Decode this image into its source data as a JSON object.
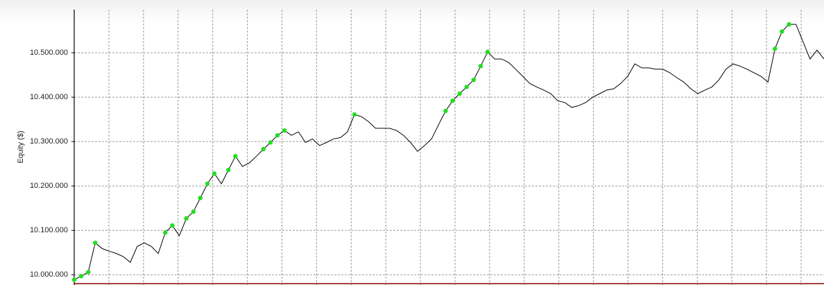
{
  "chart_data": {
    "type": "line",
    "y_label": "Equity ($)",
    "ylim": [
      9977000,
      10597000
    ],
    "yticks": [
      {
        "value": 10000000,
        "label": "10.000.000"
      },
      {
        "value": 10100000,
        "label": "10.100.000"
      },
      {
        "value": 10200000,
        "label": "10.200.000"
      },
      {
        "value": 10300000,
        "label": "10.300.000"
      },
      {
        "value": 10400000,
        "label": "10.400.000"
      },
      {
        "value": 10500000,
        "label": "10.500.000"
      }
    ],
    "grid": true,
    "series": [
      {
        "color": "#000000",
        "values": [
          9989000,
          9997000,
          10006000,
          10072000,
          10059000,
          10053000,
          10048000,
          10041000,
          10028000,
          10064000,
          10072000,
          10064000,
          10048000,
          10095000,
          10111000,
          10088000,
          10127000,
          10142000,
          10173000,
          10205000,
          10228000,
          10205000,
          10236000,
          10267000,
          10244000,
          10252000,
          10267000,
          10283000,
          10298000,
          10314000,
          10325000,
          10314000,
          10322000,
          10298000,
          10306000,
          10291000,
          10298000,
          10306000,
          10309000,
          10322000,
          10361000,
          10356000,
          10345000,
          10330000,
          10330000,
          10330000,
          10325000,
          10314000,
          10298000,
          10278000,
          10291000,
          10306000,
          10338000,
          10369000,
          10392000,
          10408000,
          10423000,
          10439000,
          10470000,
          10502000,
          10486000,
          10486000,
          10478000,
          10463000,
          10447000,
          10431000,
          10423000,
          10416000,
          10408000,
          10392000,
          10388000,
          10377000,
          10381000,
          10388000,
          10400000,
          10408000,
          10416000,
          10419000,
          10431000,
          10447000,
          10475000,
          10466000,
          10466000,
          10463000,
          10463000,
          10455000,
          10444000,
          10434000,
          10419000,
          10408000,
          10416000,
          10423000,
          10439000,
          10463000,
          10475000,
          10470000,
          10463000,
          10455000,
          10447000,
          10434000,
          10509000,
          10548000,
          10564000,
          10564000,
          10525000,
          10486000,
          10506000,
          10486000
        ]
      },
      {
        "color": "#22dd22",
        "markers_only": true,
        "values": [
          9989000,
          9997000,
          10006000,
          10072000,
          null,
          null,
          null,
          null,
          null,
          null,
          null,
          null,
          null,
          10095000,
          10111000,
          null,
          10127000,
          10142000,
          10173000,
          10205000,
          10228000,
          null,
          10236000,
          10267000,
          null,
          null,
          null,
          10283000,
          10298000,
          10314000,
          10325000,
          null,
          null,
          null,
          null,
          null,
          null,
          null,
          null,
          null,
          10361000,
          null,
          null,
          null,
          null,
          null,
          null,
          null,
          null,
          null,
          null,
          null,
          null,
          10369000,
          10392000,
          10408000,
          10423000,
          10439000,
          10470000,
          10502000,
          null,
          null,
          null,
          null,
          null,
          null,
          null,
          null,
          null,
          null,
          null,
          null,
          null,
          null,
          null,
          null,
          null,
          null,
          null,
          null,
          null,
          null,
          null,
          null,
          null,
          null,
          null,
          null,
          null,
          null,
          null,
          null,
          null,
          null,
          null,
          null,
          null,
          null,
          null,
          null,
          10509000,
          10548000,
          10564000,
          null,
          null,
          null,
          null,
          null
        ]
      }
    ]
  }
}
